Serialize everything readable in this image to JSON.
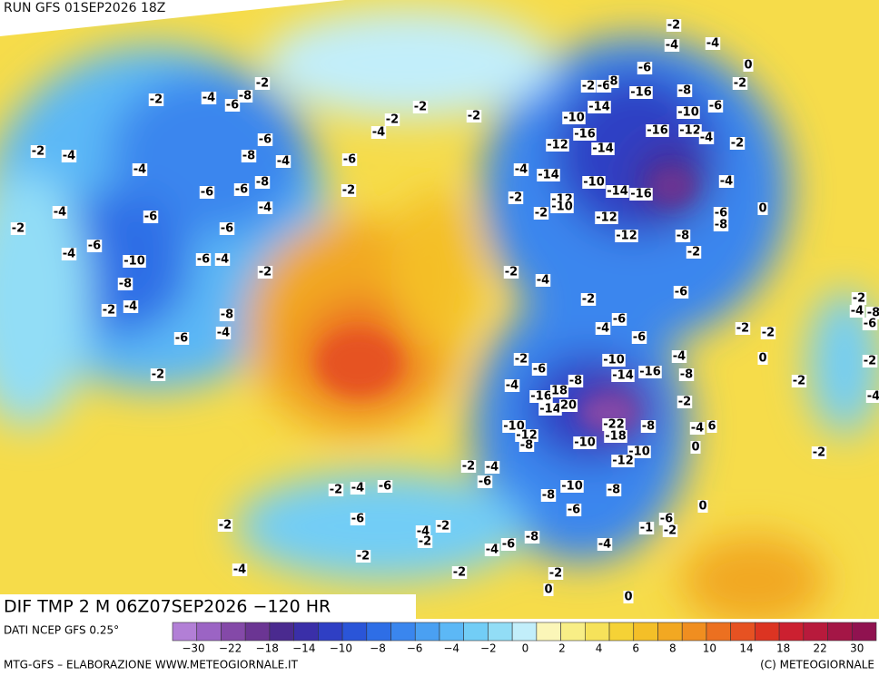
{
  "header": {
    "run": "RUN GFS 01SEP2026 18Z"
  },
  "map": {
    "title": "DIF TMP 2 M 06Z07SEP2026 −120 HR",
    "labels": [
      -2,
      -4,
      -4,
      0,
      -2,
      -6,
      -2,
      -6,
      8,
      -16,
      -8,
      -2,
      -4,
      -6,
      -8,
      -2,
      -2,
      -2,
      -2,
      -4,
      -14,
      -10,
      -10,
      -6,
      -16,
      -16,
      -12,
      -4,
      -2,
      -12,
      -14,
      -6,
      -2,
      -4,
      -8,
      -4,
      -6,
      -4,
      -4,
      -14,
      -10,
      -14,
      -16,
      -4,
      -6,
      -6,
      -8,
      -2,
      -2,
      -12,
      -10,
      -2,
      -4,
      -4,
      -6,
      -12,
      -6,
      0,
      -2,
      -6,
      -8,
      -8,
      -12,
      -2,
      -4,
      -6,
      -10,
      -6,
      -4,
      -2,
      -2,
      -4,
      -8,
      -6,
      -2,
      -2,
      -4,
      -8,
      -2,
      -4,
      -8,
      -6,
      -4,
      -6,
      -2,
      -2,
      -6,
      -4,
      -6,
      -4,
      -2,
      -10,
      0,
      -6,
      -16,
      -8,
      -14,
      -8,
      -2,
      -2,
      -2,
      -4,
      -16,
      18,
      -14,
      20,
      -2,
      -4,
      -22,
      -8,
      -4,
      6,
      -10,
      -12,
      -18,
      -8,
      -10,
      -10,
      0,
      -2,
      -2,
      -4,
      -12,
      -6,
      -2,
      -4,
      -6,
      -10,
      -8,
      -8,
      -6,
      0,
      -6,
      -6,
      -2,
      -4,
      -2,
      -1,
      -2,
      -2,
      -8,
      -4,
      -6,
      -4,
      -2,
      -2,
      -4,
      -2,
      0,
      0
    ]
  },
  "legend": {
    "source": "DATI NCEP GFS 0.25°",
    "colors": [
      "#b27fd6",
      "#9b64c4",
      "#8449a8",
      "#6b3593",
      "#4a2a8f",
      "#3a2fa8",
      "#2f3fc4",
      "#2a55d8",
      "#2e6ee6",
      "#3a86ee",
      "#4aa0f2",
      "#5cb8f6",
      "#72cdf6",
      "#92ddf6",
      "#c2eefa",
      "#fbf6b8",
      "#f8ee86",
      "#f6e25a",
      "#f5d236",
      "#f4bf28",
      "#f2a822",
      "#f08e20",
      "#ec7020",
      "#e65222",
      "#dc3422",
      "#cc2030",
      "#b81a3c",
      "#a41646",
      "#901250"
    ],
    "ticks": [
      {
        "value": -30,
        "label": "−30"
      },
      {
        "value": -22,
        "label": "−22"
      },
      {
        "value": -18,
        "label": "−18"
      },
      {
        "value": -14,
        "label": "−14"
      },
      {
        "value": -10,
        "label": "−10"
      },
      {
        "value": -8,
        "label": "−8"
      },
      {
        "value": -6,
        "label": "−6"
      },
      {
        "value": -4,
        "label": "−4"
      },
      {
        "value": -2,
        "label": "−2"
      },
      0,
      2,
      4,
      6,
      8,
      10,
      14,
      18,
      22,
      30
    ]
  },
  "footer": {
    "left": "MTG-GFS – ELABORAZIONE WWW.METEOGIORNALE.IT",
    "right": "(C) METEOGIORNALE"
  }
}
